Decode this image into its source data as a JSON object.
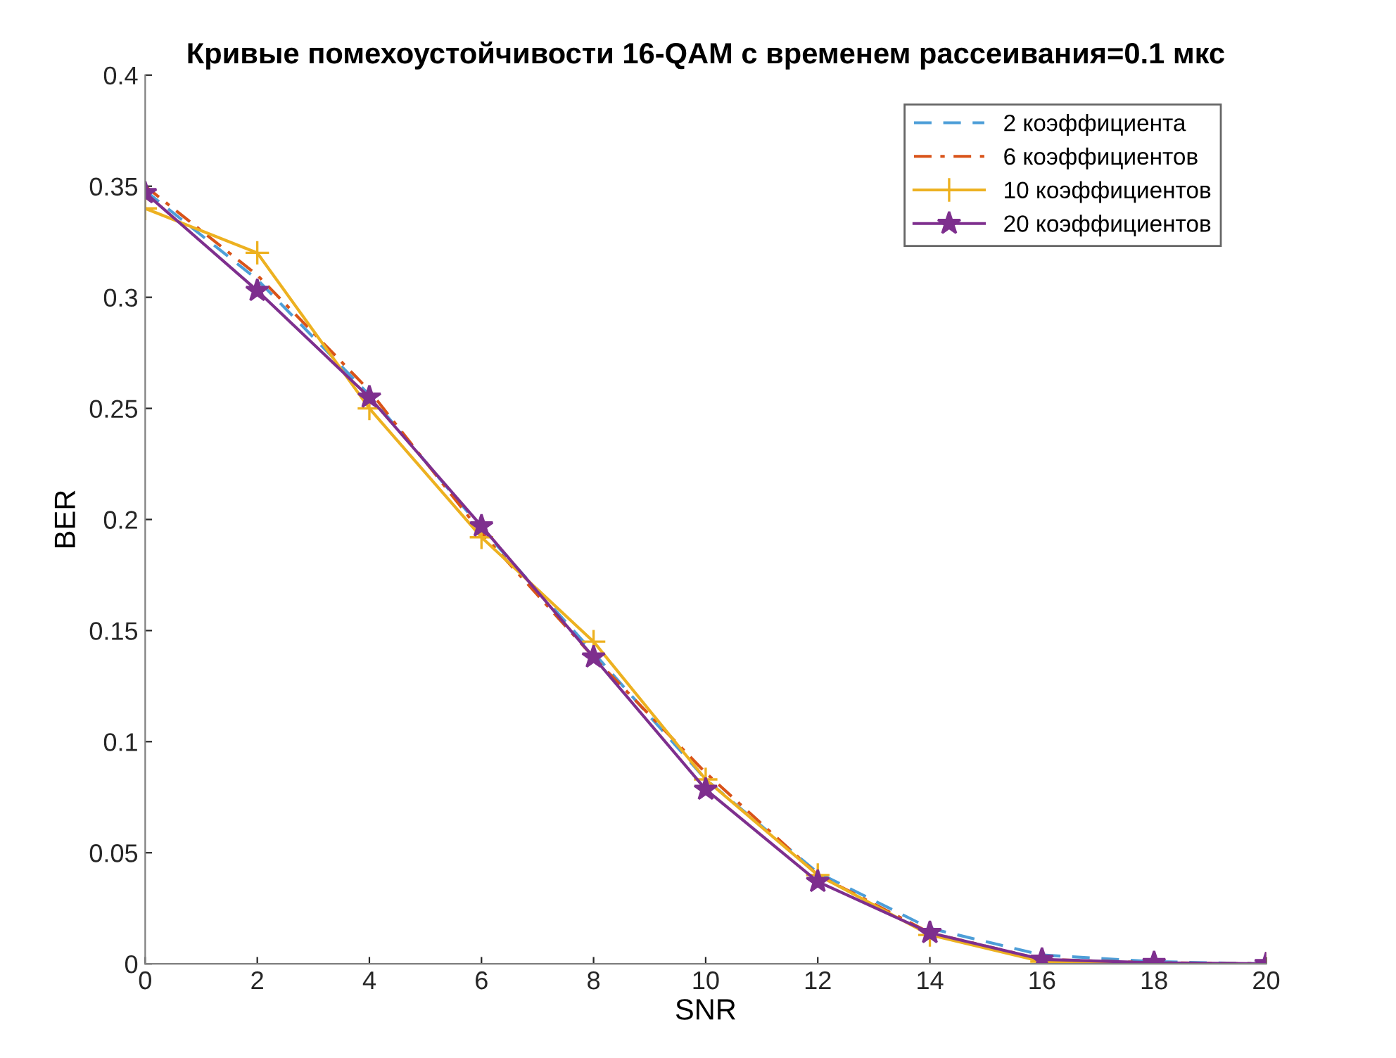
{
  "chart_data": {
    "type": "line",
    "title": "Кривые помехоустойчивости 16-QAM с временем рассеивания=0.1 мкс",
    "xlabel": "SNR",
    "ylabel": "BER",
    "x": [
      0,
      2,
      4,
      6,
      8,
      10,
      12,
      14,
      16,
      18,
      20
    ],
    "series": [
      {
        "name": "2 коэффициента",
        "color": "#4d9ed8",
        "line_style": "dashed",
        "marker": "none",
        "values": [
          0.348,
          0.308,
          0.256,
          0.196,
          0.14,
          0.083,
          0.041,
          0.016,
          0.004,
          0.001,
          0
        ]
      },
      {
        "name": "6 коэффициентов",
        "color": "#d95319",
        "line_style": "dashdot",
        "marker": "none",
        "values": [
          0.35,
          0.31,
          0.258,
          0.194,
          0.138,
          0.086,
          0.04,
          0.014,
          0.002,
          0.0005,
          0
        ]
      },
      {
        "name": "10 коэффициентов",
        "color": "#edb120",
        "line_style": "solid",
        "marker": "cross",
        "values": [
          0.34,
          0.32,
          0.25,
          0.192,
          0.145,
          0.083,
          0.04,
          0.013,
          0.001,
          0,
          0
        ]
      },
      {
        "name": "20 коэффициентов",
        "color": "#7e2f8e",
        "line_style": "solid",
        "marker": "star",
        "values": [
          0.347,
          0.303,
          0.255,
          0.197,
          0.138,
          0.0785,
          0.037,
          0.014,
          0.002,
          0.0005,
          0
        ]
      }
    ],
    "xlim": [
      0,
      20
    ],
    "xticks": [
      0,
      2,
      4,
      6,
      8,
      10,
      12,
      14,
      16,
      18,
      20
    ],
    "ylim": [
      0,
      0.4
    ],
    "yticks": [
      0,
      0.05,
      0.1,
      0.15,
      0.2,
      0.25,
      0.3,
      0.35,
      0.4
    ],
    "grid": false,
    "legend": "top right"
  }
}
